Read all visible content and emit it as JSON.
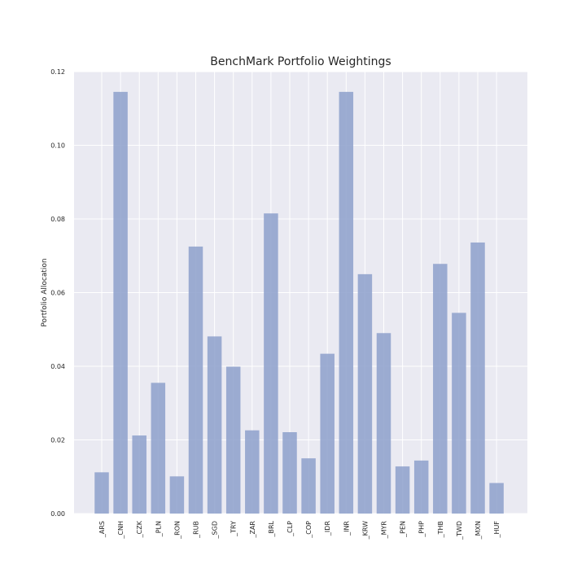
{
  "chart_data": {
    "type": "bar",
    "title": "BenchMark Portfolio Weightings",
    "xlabel": "",
    "ylabel": "Portfolio Allocation",
    "ylim": [
      0,
      0.12
    ],
    "yticks": [
      "0.00",
      "0.02",
      "0.04",
      "0.06",
      "0.08",
      "0.10",
      "0.12"
    ],
    "grid": true,
    "categories": [
      "_ARS",
      "_CNH",
      "_CZK",
      "_PLN",
      "_RON",
      "_RUB",
      "_SGD",
      "_TRY",
      "_ZAR",
      "_BRL",
      "_CLP",
      "_COP",
      "_IDR",
      "_INR",
      "_KRW",
      "_MYR",
      "_PEN",
      "_PHP",
      "_THB",
      "_TWD",
      "_MXN",
      "_HUF"
    ],
    "values": [
      0.0112,
      0.1145,
      0.0212,
      0.0355,
      0.0101,
      0.0725,
      0.0481,
      0.0399,
      0.0226,
      0.0815,
      0.0221,
      0.015,
      0.0434,
      0.1145,
      0.065,
      0.049,
      0.0128,
      0.0144,
      0.0678,
      0.0545,
      0.0736,
      0.0083
    ],
    "colors": {
      "bar": "#8da0cb",
      "background": "#eaeaf2",
      "grid": "#ffffff"
    }
  }
}
